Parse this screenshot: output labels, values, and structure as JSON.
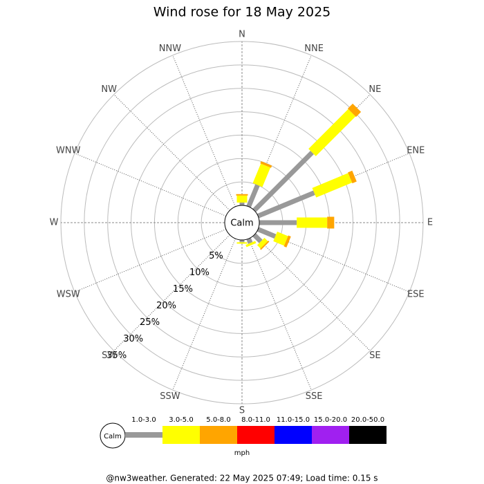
{
  "chart_data": {
    "type": "wind-rose",
    "title": "Wind rose for 18 May 2025",
    "calm_label": "Calm",
    "directions": [
      "N",
      "NNE",
      "NE",
      "ENE",
      "E",
      "ESE",
      "SE",
      "SSE",
      "S",
      "SSW",
      "SW",
      "WSW",
      "W",
      "WNW",
      "NW",
      "NNW"
    ],
    "series": [
      {
        "name": "1.0-3.0",
        "color": "#999999",
        "values": [
          0.6,
          5,
          17.5,
          13,
          8,
          4,
          2,
          1,
          0.5,
          0,
          0,
          0,
          0,
          0,
          0,
          0
        ]
      },
      {
        "name": "3.0-5.0",
        "color": "#ffff00",
        "values": [
          1.5,
          4.5,
          12,
          8.3,
          6.5,
          2.5,
          1,
          0.5,
          0.3,
          0,
          0,
          0,
          0,
          0,
          0,
          0
        ]
      },
      {
        "name": "5.0-8.0",
        "color": "#ffa500",
        "values": [
          0.3,
          0.5,
          1.5,
          1,
          1.5,
          0.6,
          0.3,
          0,
          0,
          0,
          0,
          0,
          0,
          0,
          0,
          0
        ]
      },
      {
        "name": "8.0-11.0",
        "color": "#ff0000",
        "values": [
          0,
          0,
          0,
          0,
          0,
          0,
          0,
          0,
          0,
          0,
          0,
          0,
          0,
          0,
          0,
          0
        ]
      },
      {
        "name": "11.0-15.0",
        "color": "#0000ff",
        "values": [
          0,
          0,
          0,
          0,
          0,
          0,
          0,
          0,
          0,
          0,
          0,
          0,
          0,
          0,
          0,
          0
        ]
      },
      {
        "name": "15.0-20.0",
        "color": "#a020f0",
        "values": [
          0,
          0,
          0,
          0,
          0,
          0,
          0,
          0,
          0,
          0,
          0,
          0,
          0,
          0,
          0,
          0
        ]
      },
      {
        "name": "20.0-50.0",
        "color": "#000000",
        "values": [
          0,
          0,
          0,
          0,
          0,
          0,
          0,
          0,
          0,
          0,
          0,
          0,
          0,
          0,
          0,
          0
        ]
      }
    ],
    "rlim": [
      0,
      35
    ],
    "rticks": [
      {
        "value": 5,
        "label": "5%"
      },
      {
        "value": 10,
        "label": "10%"
      },
      {
        "value": 15,
        "label": "15%"
      },
      {
        "value": 20,
        "label": "20%"
      },
      {
        "value": 25,
        "label": "25%"
      },
      {
        "value": 30,
        "label": "30%"
      },
      {
        "value": 35,
        "label": "35%"
      }
    ],
    "unit": "mph",
    "footer": "@nw3weather. Generated: 22 May 2025 07:49; Load time: 0.15 s"
  }
}
